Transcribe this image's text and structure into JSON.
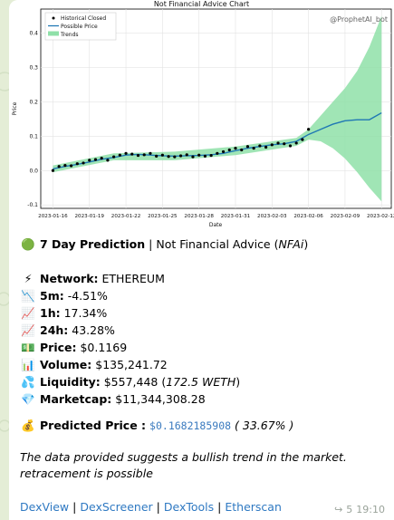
{
  "chart": {
    "title": "Not Financial Advice Chart",
    "watermark": "@ProphetAI_bot",
    "xlabel": "Date",
    "ylabel": "Price",
    "legend": [
      "Historical Closed",
      "Possible Price",
      "Trends"
    ],
    "colors": {
      "historical": "#000000",
      "possible": "#1f77b4",
      "trends": "#8fe0a8"
    }
  },
  "chart_data": {
    "type": "line",
    "title": "Not Financial Advice Chart",
    "xlabel": "Date",
    "ylabel": "Price",
    "ylim": [
      -0.11,
      0.47
    ],
    "yticks": [
      -0.1,
      0.0,
      0.1,
      0.2,
      0.3,
      0.4
    ],
    "ytick_labels": [
      "-0.1",
      "0.0",
      "0.1",
      "0.2",
      "0.3",
      "0.4"
    ],
    "xticks": [
      "2023-01-16",
      "2023-01-19",
      "2023-01-22",
      "2023-01-25",
      "2023-01-28",
      "2023-01-31",
      "2023-02-03",
      "2023-02-06",
      "2023-02-09",
      "2023-02-12"
    ],
    "xlim_days": [
      -1.0,
      27.8
    ],
    "grid": true,
    "legend_position": "top-left",
    "series": [
      {
        "name": "Historical Closed",
        "day": [
          0,
          0.5,
          1,
          1.5,
          2,
          2.5,
          3,
          3.5,
          4,
          4.5,
          5,
          5.5,
          6,
          6.5,
          7,
          7.5,
          8,
          8.5,
          9,
          9.5,
          10,
          10.5,
          11,
          11.5,
          12,
          12.5,
          13,
          13.5,
          14,
          14.5,
          15,
          15.5,
          16,
          16.5,
          17,
          17.5,
          18,
          18.5,
          19,
          19.5,
          20,
          20.5,
          21
        ],
        "values": [
          0.0,
          0.012,
          0.015,
          0.014,
          0.02,
          0.022,
          0.03,
          0.032,
          0.036,
          0.03,
          0.04,
          0.045,
          0.05,
          0.048,
          0.044,
          0.046,
          0.05,
          0.042,
          0.045,
          0.041,
          0.04,
          0.043,
          0.046,
          0.04,
          0.045,
          0.042,
          0.044,
          0.05,
          0.055,
          0.06,
          0.065,
          0.06,
          0.07,
          0.065,
          0.072,
          0.068,
          0.075,
          0.08,
          0.078,
          0.072,
          0.08,
          0.09,
          0.12
        ]
      },
      {
        "name": "Possible Price",
        "day": [
          0,
          1,
          2,
          3,
          4,
          5,
          6,
          7,
          8,
          9,
          10,
          11,
          12,
          13,
          14,
          15,
          16,
          17,
          18,
          19,
          20,
          20.5,
          21,
          22,
          23,
          24,
          25,
          26,
          27
        ],
        "values": [
          0.005,
          0.012,
          0.018,
          0.025,
          0.033,
          0.038,
          0.045,
          0.047,
          0.045,
          0.043,
          0.042,
          0.043,
          0.044,
          0.046,
          0.05,
          0.058,
          0.065,
          0.07,
          0.075,
          0.078,
          0.085,
          0.095,
          0.105,
          0.12,
          0.135,
          0.145,
          0.148,
          0.148,
          0.168
        ]
      },
      {
        "name": "Trends",
        "day": [
          0,
          5,
          10,
          15,
          20,
          21,
          22,
          23,
          24,
          25,
          26,
          27
        ],
        "upper": [
          0.015,
          0.05,
          0.055,
          0.07,
          0.095,
          0.12,
          0.16,
          0.2,
          0.24,
          0.29,
          0.36,
          0.45
        ],
        "lower": [
          -0.005,
          0.03,
          0.03,
          0.045,
          0.072,
          0.09,
          0.085,
          0.065,
          0.035,
          -0.005,
          -0.05,
          -0.09
        ]
      }
    ]
  },
  "message": {
    "headline_emoji": "🟢",
    "headline_bold": "7 Day Prediction",
    "headline_sep": " | ",
    "headline_text": "Not Financial Advice (",
    "headline_italic": "NFAi",
    "headline_close": ")",
    "network_emoji": "⚡",
    "network_label": "Network:",
    "network_value": " ETHEREUM",
    "m5_emoji": "📉",
    "m5_label": "5m:",
    "m5_value": " -4.51%",
    "h1_emoji": "📈",
    "h1_label": "1h:",
    "h1_value": " 17.34%",
    "h24_emoji": "📈",
    "h24_label": "24h:",
    "h24_value": " 43.28%",
    "price_emoji": "💵",
    "price_label": "Price:",
    "price_value": " $0.1169",
    "volume_emoji": "📊",
    "volume_label": "Volume:",
    "volume_value": " $135,241.72",
    "liquidity_emoji": "💦",
    "liquidity_label": "Liquidity:",
    "liquidity_value": " $557,448 (",
    "liquidity_italic": "172.5 WETH",
    "liquidity_close": ")",
    "mcap_emoji": "💎",
    "mcap_label": "Marketcap:",
    "mcap_value": " $11,344,308.28",
    "predicted_emoji": "💰",
    "predicted_label": "Predicted Price :",
    "predicted_value": "$0.1682185908",
    "predicted_pct": " ( 33.67% )",
    "summary": "The data provided suggests a bullish trend in the market. retracement is possible",
    "links": [
      "DexView",
      "DexScreener",
      "DexTools",
      "Etherscan"
    ],
    "separator": "|",
    "forward_icon": "↪",
    "views": "5",
    "time": "19:10"
  }
}
